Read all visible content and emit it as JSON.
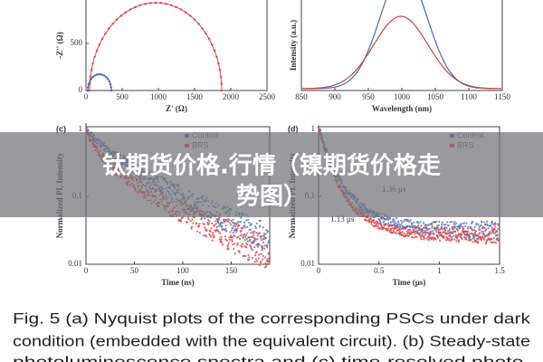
{
  "figure": {
    "panels": [
      {
        "x_ticks": [
          "0",
          "500",
          "1000",
          "1500",
          "2000",
          "2500"
        ],
        "y_ticks": [
          "500",
          "0"
        ],
        "x_axis_label": "Z' (Ω)",
        "y_axis_label": "-Z'' (Ω)"
      },
      {
        "x_ticks": [
          "850",
          "900",
          "950",
          "1000",
          "1050",
          "1100",
          "1150"
        ],
        "x_axis_label": "Wavelength (nm)",
        "y_axis_label": "Intensity (a.u.)"
      },
      {
        "label": "(c)",
        "x_ticks": [
          "0",
          "50",
          "100",
          "150"
        ],
        "y_ticks": [
          "1",
          "0.1",
          "0.01"
        ],
        "x_axis_label": "Time (ns)",
        "y_axis_label": "Normalized PL Intensity",
        "legend": [
          "Control",
          "BRS"
        ]
      },
      {
        "label": "(d)",
        "x_ticks": [
          "0",
          "0.5",
          "1",
          "1.5"
        ],
        "y_ticks": [
          "1",
          "0.1",
          "0.01"
        ],
        "x_axis_label": "Time (μs)",
        "y_axis_label": "Normalized PL Intensity",
        "legend": [
          "Control",
          "BRS"
        ],
        "annotations": [
          "1.36 μs",
          "1.13 μs"
        ]
      }
    ],
    "caption": [
      "Fig. 5  (a) Nyquist plots of the corresponding PSCs under dark",
      "condition (embedded with the equivalent circuit). (b) Steady-state",
      "photoluminescence  spectra  and  (c)  time-resolved  photo-"
    ]
  },
  "overlay_title": [
    "钛期货价格.行情（镍期货价格走",
    "势图）"
  ]
}
